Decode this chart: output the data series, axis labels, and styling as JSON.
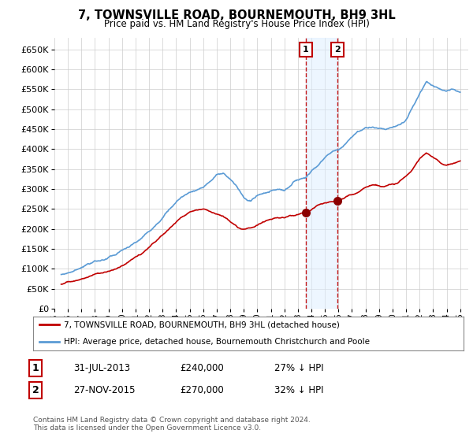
{
  "title": "7, TOWNSVILLE ROAD, BOURNEMOUTH, BH9 3HL",
  "subtitle": "Price paid vs. HM Land Registry's House Price Index (HPI)",
  "ylabel_ticks": [
    0,
    50000,
    100000,
    150000,
    200000,
    250000,
    300000,
    350000,
    400000,
    450000,
    500000,
    550000,
    600000,
    650000
  ],
  "ylim": [
    0,
    680000
  ],
  "xlim_start": 1995.4,
  "xlim_end": 2025.6,
  "xticks": [
    1995,
    1996,
    1997,
    1998,
    1999,
    2000,
    2001,
    2002,
    2003,
    2004,
    2005,
    2006,
    2007,
    2008,
    2009,
    2010,
    2011,
    2012,
    2013,
    2014,
    2015,
    2016,
    2017,
    2018,
    2019,
    2020,
    2021,
    2022,
    2023,
    2024,
    2025
  ],
  "hpi_color": "#5b9bd5",
  "price_color": "#c00000",
  "marker_color": "#8b0000",
  "vline_color": "#c00000",
  "shade_color": "#ddeeff",
  "shade_alpha": 0.5,
  "legend_label_red": "7, TOWNSVILLE ROAD, BOURNEMOUTH, BH9 3HL (detached house)",
  "legend_label_blue": "HPI: Average price, detached house, Bournemouth Christchurch and Poole",
  "sale1_year": 2013.58,
  "sale1_price": 240000,
  "sale1_label": "1",
  "sale2_year": 2015.92,
  "sale2_price": 270000,
  "sale2_label": "2",
  "table_row1": [
    "1",
    "31-JUL-2013",
    "£240,000",
    "27% ↓ HPI"
  ],
  "table_row2": [
    "2",
    "27-NOV-2015",
    "£270,000",
    "32% ↓ HPI"
  ],
  "footnote1": "Contains HM Land Registry data © Crown copyright and database right 2024.",
  "footnote2": "This data is licensed under the Open Government Licence v3.0.",
  "background_color": "#ffffff",
  "grid_color": "#cccccc"
}
